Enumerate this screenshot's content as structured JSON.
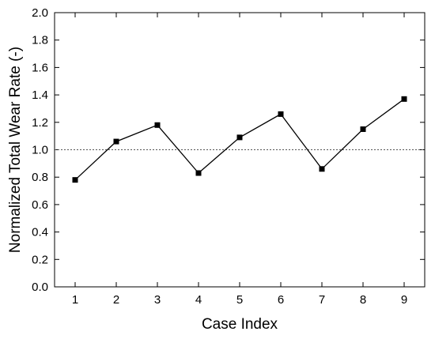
{
  "chart_data": {
    "type": "line",
    "title": "",
    "xlabel": "Case Index",
    "ylabel": "Normalized Total Wear Rate (-)",
    "x": [
      1,
      2,
      3,
      4,
      5,
      6,
      7,
      8,
      9
    ],
    "series": [
      {
        "values": [
          0.78,
          1.06,
          1.18,
          0.83,
          1.09,
          1.26,
          0.86,
          1.15,
          1.37
        ]
      }
    ],
    "xlim": [
      0.5,
      9.5
    ],
    "ylim": [
      0.0,
      2.0
    ],
    "xticks": [
      "1",
      "2",
      "3",
      "4",
      "5",
      "6",
      "7",
      "8",
      "9"
    ],
    "yticks": [
      "0.0",
      "0.2",
      "0.4",
      "0.6",
      "0.8",
      "1.0",
      "1.2",
      "1.4",
      "1.6",
      "1.8",
      "2.0"
    ],
    "reference_line": {
      "y": 1.0,
      "style": "dotted"
    },
    "marker": "square",
    "grid": false,
    "colors": {
      "line": "#000000",
      "marker": "#000000",
      "reference": "#555555"
    }
  }
}
